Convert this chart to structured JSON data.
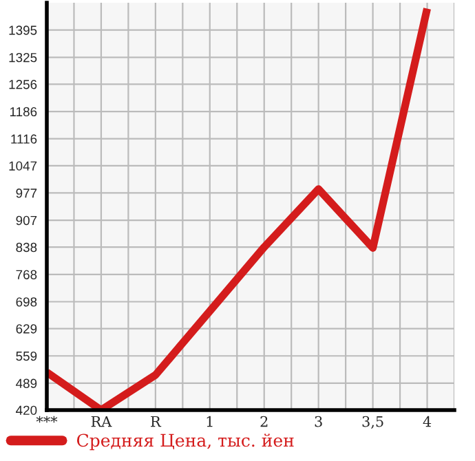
{
  "chart_data": {
    "type": "line",
    "categories": [
      "***",
      "RA",
      "R",
      "1",
      "2",
      "3",
      "3,5",
      "4"
    ],
    "series": [
      {
        "name": "Средняя Цена, тыс. йен",
        "color": "#d41c1c",
        "values": [
          517,
          420,
          510,
          674,
          838,
          987,
          836,
          1450
        ]
      }
    ],
    "ylim": [
      420,
      1465
    ],
    "yticks": [
      420,
      489,
      559,
      629,
      698,
      768,
      838,
      907,
      977,
      1047,
      1116,
      1186,
      1256,
      1325,
      1395
    ],
    "grid": true,
    "legend": "bottom",
    "marker": "none",
    "line_style": "solid"
  }
}
